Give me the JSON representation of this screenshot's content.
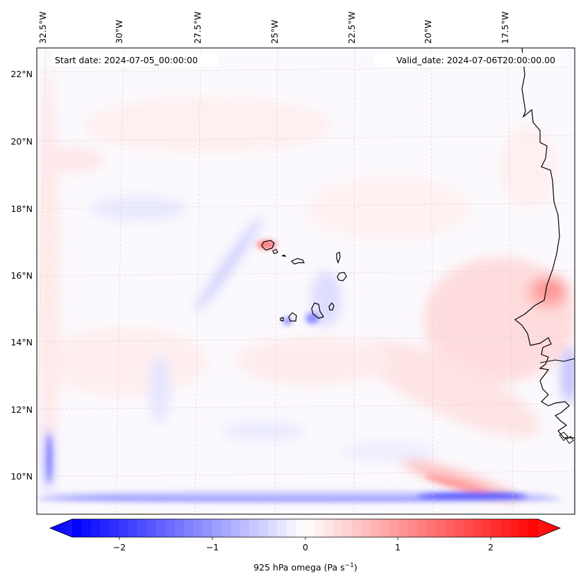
{
  "map": {
    "start_date": "Start date: 2024-07-05_00:00:00",
    "valid_date": "Valid_date: 2024-07-06T20:00:00.00",
    "lon_labels": [
      "32.5°W",
      "30°W",
      "27.5°W",
      "25°W",
      "22.5°W",
      "20°W",
      "17.5°W"
    ],
    "lat_labels": [
      "22°N",
      "20°N",
      "18°N",
      "16°N",
      "14°N",
      "12°N",
      "10°N"
    ],
    "features": [
      "cabo-verde-islands",
      "west-african-coastline"
    ]
  },
  "colorbar": {
    "label": "925 hPa omega (Pa s",
    "label_sup": "−1",
    "label_end": ")",
    "ticks": [
      "−2",
      "−1",
      "0",
      "1",
      "2"
    ],
    "range": [
      -2.5,
      2.5
    ],
    "colormap": "bwr",
    "colors": {
      "min": "#0000ff",
      "mid": "#ffffff",
      "max": "#ff0000"
    }
  }
}
